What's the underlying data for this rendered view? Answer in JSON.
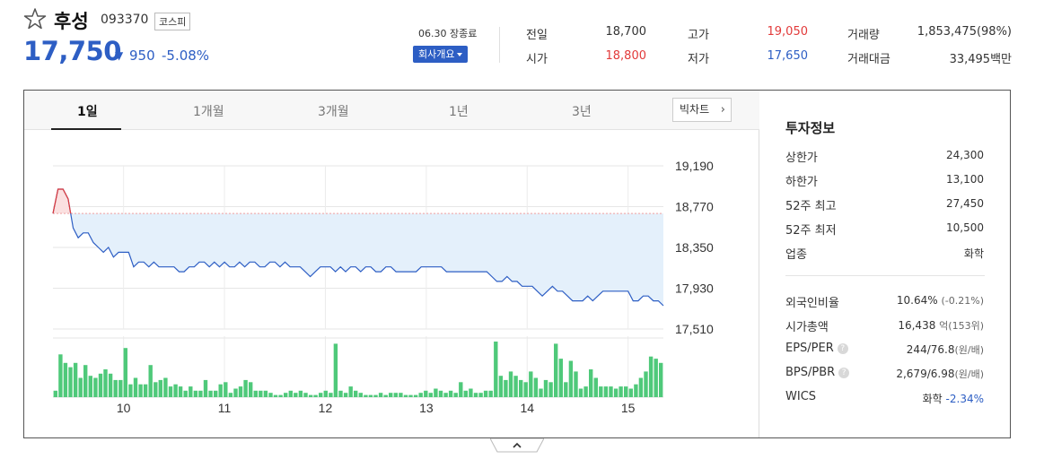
{
  "stock": {
    "name": "후성",
    "code": "093370",
    "market": "코스피",
    "price": "17,750",
    "change_arrow": "▼",
    "change": "950",
    "change_pct": "-5.08%"
  },
  "market_status": "06.30 장종료",
  "company_button": "회사개요",
  "quote": {
    "prev_close_label": "전일",
    "prev_close": "18,700",
    "open_label": "시가",
    "open": "18,800",
    "high_label": "고가",
    "high": "19,050",
    "low_label": "저가",
    "low": "17,650",
    "volume_label": "거래량",
    "volume": "1,853,475(98%)",
    "value_label": "거래대금",
    "value": "33,495백만"
  },
  "tabs": [
    "1일",
    "1개월",
    "3개월",
    "1년",
    "3년"
  ],
  "active_tab": "1일",
  "bigchart_label": "빅차트",
  "info": {
    "title": "투자정보",
    "upper_limit_label": "상한가",
    "upper_limit": "24,300",
    "lower_limit_label": "하한가",
    "lower_limit": "13,100",
    "high52_label": "52주 최고",
    "high52": "27,450",
    "low52_label": "52주 최저",
    "low52": "10,500",
    "sector_label": "업종",
    "sector": "화학",
    "foreign_label": "외국인비율",
    "foreign": "10.64%",
    "foreign_sub": "(-0.21%)",
    "mcap_label": "시가총액",
    "mcap": "16,438",
    "mcap_unit": "억",
    "mcap_sub": "(153위)",
    "eps_label": "EPS/PER",
    "eps": "244/76.8",
    "eps_sub": "(원/배)",
    "bps_label": "BPS/PBR",
    "bps": "2,679/6.98",
    "bps_sub": "(원/배)",
    "wics_label": "WICS",
    "wics": "화학",
    "wics_sub": "-2.34%"
  },
  "colors": {
    "up": "#e23a3a",
    "down": "#2d5ec4",
    "volume": "#4fc97a",
    "area": "#e4f0fb"
  },
  "chart_data": {
    "type": "line",
    "prev_close": 18700,
    "ylim": [
      17510,
      19190
    ],
    "yticks": [
      "19,190",
      "18,770",
      "18,350",
      "17,930",
      "17,510"
    ],
    "ytick_values": [
      19190,
      18770,
      18350,
      17930,
      17510
    ],
    "xticks": [
      "10",
      "11",
      "12",
      "13",
      "14",
      "15"
    ],
    "xtick_index": [
      14,
      34,
      54,
      74,
      94,
      114
    ],
    "price": [
      18700,
      18950,
      18950,
      18850,
      18550,
      18450,
      18500,
      18500,
      18400,
      18350,
      18300,
      18350,
      18250,
      18300,
      18300,
      18300,
      18150,
      18200,
      18200,
      18150,
      18200,
      18150,
      18150,
      18150,
      18150,
      18100,
      18100,
      18150,
      18150,
      18200,
      18200,
      18150,
      18200,
      18150,
      18200,
      18150,
      18150,
      18200,
      18150,
      18200,
      18200,
      18150,
      18150,
      18200,
      18200,
      18150,
      18200,
      18150,
      18150,
      18150,
      18100,
      18050,
      18100,
      18150,
      18150,
      18150,
      18100,
      18150,
      18100,
      18150,
      18150,
      18100,
      18150,
      18150,
      18100,
      18100,
      18150,
      18150,
      18100,
      18100,
      18100,
      18100,
      18100,
      18150,
      18150,
      18150,
      18150,
      18150,
      18100,
      18100,
      18100,
      18100,
      18100,
      18100,
      18100,
      18100,
      18100,
      18050,
      18000,
      18000,
      18050,
      18000,
      18000,
      17950,
      17950,
      17950,
      17900,
      17850,
      17900,
      17950,
      17900,
      17900,
      17850,
      17800,
      17800,
      17800,
      17850,
      17800,
      17850,
      17900,
      17900,
      17900,
      17900,
      17900,
      17900,
      17800,
      17800,
      17850,
      17850,
      17800,
      17800,
      17750
    ],
    "volume": [
      3,
      20,
      16,
      14,
      16,
      9,
      15,
      10,
      9,
      11,
      13,
      11,
      8,
      8,
      23,
      6,
      9,
      6,
      6,
      15,
      7,
      8,
      9,
      5,
      6,
      5,
      3,
      5,
      3,
      3,
      8,
      3,
      3,
      6,
      7,
      2,
      4,
      5,
      8,
      7,
      3,
      3,
      3,
      2,
      1,
      1,
      2,
      3,
      2,
      3,
      2,
      1,
      1,
      2,
      3,
      2,
      25,
      3,
      2,
      5,
      3,
      2,
      1,
      1,
      1,
      2,
      1,
      2,
      2,
      2,
      1,
      1,
      1,
      2,
      3,
      2,
      4,
      3,
      2,
      3,
      2,
      7,
      3,
      4,
      2,
      2,
      3,
      3,
      26,
      10,
      8,
      12,
      10,
      8,
      7,
      12,
      9,
      4,
      8,
      7,
      25,
      18,
      7,
      17,
      12,
      4,
      5,
      13,
      9,
      5,
      5,
      5,
      4,
      5,
      5,
      4,
      6,
      9,
      12,
      19,
      18,
      16
    ]
  }
}
